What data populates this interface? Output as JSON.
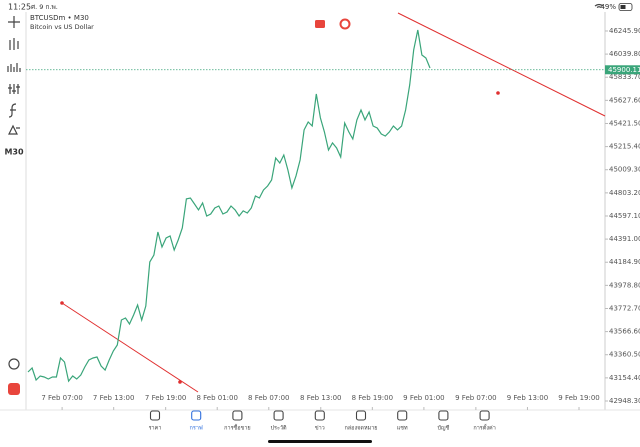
{
  "status_bar": {
    "time": "11:25",
    "date": "ศ. 9 ก.พ.",
    "battery": "49%"
  },
  "toolbar": {
    "timeframe": "M30"
  },
  "chart_data": {
    "type": "line",
    "title": "BTCUSDm • M30",
    "subtitle": "Bitcoin vs US Dollar",
    "color": "#3aa57a",
    "values": [
      43207,
      43242,
      43135,
      43171,
      43162,
      43144,
      43162,
      43162,
      43331,
      43296,
      43126,
      43171,
      43144,
      43180,
      43251,
      43314,
      43331,
      43340,
      43260,
      43224,
      43314,
      43394,
      43447,
      43670,
      43688,
      43634,
      43715,
      43804,
      43670,
      43795,
      44187,
      44249,
      44454,
      44321,
      44401,
      44419,
      44294,
      44383,
      44490,
      44749,
      44757,
      44704,
      44651,
      44713,
      44597,
      44615,
      44668,
      44686,
      44615,
      44633,
      44686,
      44651,
      44597,
      44642,
      44624,
      44668,
      44775,
      44757,
      44829,
      44864,
      44918,
      45114,
      45069,
      45141,
      45007,
      44847,
      44954,
      45096,
      45364,
      45435,
      45399,
      45684,
      45471,
      45346,
      45185,
      45248,
      45203,
      45123,
      45426,
      45346,
      45283,
      45453,
      45542,
      45453,
      45524,
      45399,
      45381,
      45328,
      45310,
      45346,
      45399,
      45364,
      45399,
      45542,
      45765,
      46077,
      46255,
      46032,
      46005,
      45916
    ],
    "xlim": [
      0,
      142.1
    ],
    "xticks": [
      {
        "value": 8.4,
        "label": "7 Feb 07:00"
      },
      {
        "value": 21.1,
        "label": "7 Feb 13:00"
      },
      {
        "value": 33.9,
        "label": "7 Feb 19:00"
      },
      {
        "value": 46.6,
        "label": "8 Feb 01:00"
      },
      {
        "value": 59.3,
        "label": "8 Feb 07:00"
      },
      {
        "value": 72.1,
        "label": "8 Feb 13:00"
      },
      {
        "value": 84.8,
        "label": "8 Feb 19:00"
      },
      {
        "value": 97.5,
        "label": "9 Feb 01:00"
      },
      {
        "value": 110.3,
        "label": "9 Feb 07:00"
      },
      {
        "value": 123,
        "label": "9 Feb 13:00"
      },
      {
        "value": 135.7,
        "label": "9 Feb 19:00"
      }
    ],
    "ylim": [
      42868,
      46415
    ],
    "yticks": [
      {
        "value": 46245.9,
        "label": "46245.90"
      },
      {
        "value": 46039.8,
        "label": "46039.80"
      },
      {
        "value": 45833.7,
        "label": "45833.70"
      },
      {
        "value": 45627.6,
        "label": "45627.60"
      },
      {
        "value": 45421.5,
        "label": "45421.50"
      },
      {
        "value": 45215.4,
        "label": "45215.40"
      },
      {
        "value": 45009.3,
        "label": "45009.30"
      },
      {
        "value": 44803.2,
        "label": "44803.20"
      },
      {
        "value": 44597.1,
        "label": "44597.10"
      },
      {
        "value": 44391,
        "label": "44391.00"
      },
      {
        "value": 44184.9,
        "label": "44184.90"
      },
      {
        "value": 43978.8,
        "label": "43978.80"
      },
      {
        "value": 43772.7,
        "label": "43772.70"
      },
      {
        "value": 43566.6,
        "label": "43566.60"
      },
      {
        "value": 43360.5,
        "label": "43360.50"
      },
      {
        "value": 43154.4,
        "label": "43154.40"
      },
      {
        "value": 42948.3,
        "label": "42948.30"
      }
    ],
    "current_price": 45900.11,
    "current_price_color": "#3aa57a"
  },
  "bottom_nav": {
    "items": [
      "ราคา",
      "กราฟ",
      "การซื้อขาย",
      "ประวัติ",
      "ข่าว",
      "กล่องจดหมาย",
      "แชท",
      "บัญชี",
      "การตั้งค่า"
    ],
    "active": 1
  }
}
